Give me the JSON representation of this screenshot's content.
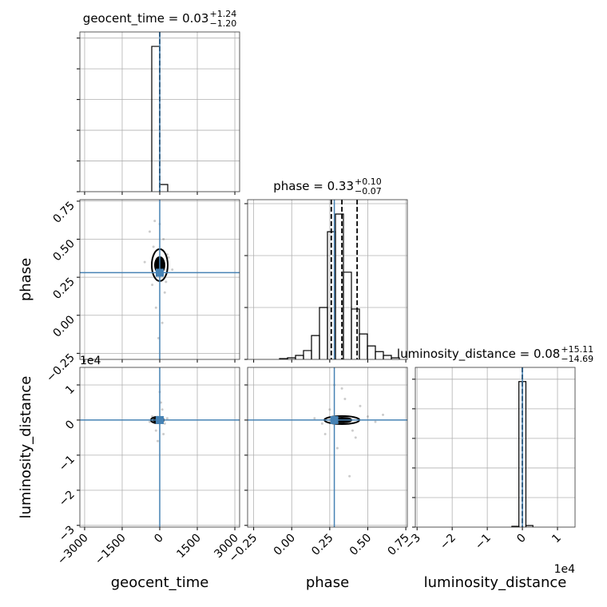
{
  "chart_data": {
    "type": "corner",
    "grid": true,
    "hist_color": "#000000",
    "truth_color": "#4682b4",
    "scatter_color": "#808080",
    "parameters": [
      {
        "name": "geocent_time",
        "title": "geocent_time = 0.03",
        "title_sup": "+1.24",
        "title_sub": "−1.20",
        "lim": [
          -3190,
          3190
        ],
        "ticks": [
          {
            "value": -3000,
            "label": "−3000"
          },
          {
            "value": -1500,
            "label": "−1500"
          },
          0,
          1500,
          3000
        ],
        "truth": 0,
        "quantiles": [
          -1.17,
          0.03,
          1.27
        ],
        "bins": [
          -319,
          0,
          319
        ],
        "counts": [
          4730,
          234
        ],
        "hist_ylim": [
          0,
          5200
        ],
        "hist_yticks": [
          0,
          1000,
          2000,
          3000,
          4000,
          5000
        ]
      },
      {
        "name": "phase",
        "title": "phase = 0.33",
        "title_sup": "+0.10",
        "title_sub": "−0.07",
        "lim": [
          -0.29,
          0.76
        ],
        "ticks": [
          {
            "value": -0.25,
            "label": "−0.25"
          },
          {
            "value": 0,
            "label": "0.00"
          },
          0.25,
          {
            "value": 0.5,
            "label": "0.50"
          },
          0.75
        ],
        "truth": 0.28,
        "quantiles": [
          0.26,
          0.33,
          0.43
        ],
        "bins": [
          -0.08,
          -0.0275,
          0.025,
          0.0775,
          0.13,
          0.1825,
          0.235,
          0.2875,
          0.34,
          0.3925,
          0.445,
          0.4975,
          0.55,
          0.6025,
          0.655,
          0.7075
        ],
        "counts": [
          15,
          31,
          77,
          170,
          460,
          1000,
          2460,
          2800,
          1680,
          970,
          490,
          260,
          150,
          77,
          31
        ],
        "hist_ylim": [
          0,
          3077
        ],
        "hist_yticks": [
          0,
          1000,
          2000,
          3000
        ],
        "joint": [
          {
            "points": [
              [
                -400,
                0.55
              ],
              [
                -250,
                0.45
              ],
              [
                150,
                0.5
              ],
              [
                300,
                0.4
              ],
              [
                -300,
                0.2
              ],
              [
                200,
                0.15
              ],
              [
                -150,
                0.05
              ],
              [
                100,
                -0.05
              ],
              [
                -600,
                0.35
              ],
              [
                500,
                0.3
              ],
              [
                0,
                0.6
              ],
              [
                -50,
                -0.15
              ],
              [
                250,
                0.22
              ],
              [
                -200,
                0.62
              ],
              [
                350,
                0.38
              ]
            ],
            "contours": [
              {
                "cx": 0,
                "cy": 0.33,
                "rx": 319,
                "ry": 0.105
              },
              {
                "cx": 0,
                "cy": 0.33,
                "rx": 190,
                "ry": 0.0525
              }
            ]
          }
        ]
      },
      {
        "name": "luminosity_distance",
        "title": "luminosity_distance = 0.08",
        "title_sup": "+15.11",
        "title_sub": "−14.69",
        "offset_label": "1e4",
        "lim": [
          -3.05,
          1.5
        ],
        "ticks": [
          {
            "value": -3,
            "label": "−3"
          },
          {
            "value": -2,
            "label": "−2"
          },
          {
            "value": -1,
            "label": "−1"
          },
          0,
          1
        ],
        "truth": 0,
        "quantiles": [
          -0.00146,
          8e-06,
          0.00152
        ],
        "bins": [
          -0.3,
          -0.1,
          0.1,
          0.3
        ],
        "counts": [
          27,
          4920,
          54
        ],
        "hist_ylim": [
          0,
          5400
        ],
        "hist_yticks": [
          0,
          1000,
          2000,
          3000,
          4000,
          5000
        ],
        "joint": [
          {
            "points": [
              [
                -300,
                0.1
              ],
              [
                200,
                -0.1
              ],
              [
                100,
                0.3
              ],
              [
                -150,
                -0.3
              ],
              [
                50,
                0.5
              ],
              [
                -80,
                -0.6
              ],
              [
                300,
                0.05
              ],
              [
                -400,
                -0.05
              ],
              [
                0,
                0.8
              ],
              [
                150,
                -0.4
              ]
            ],
            "contours": [
              {
                "cx": -96,
                "cy": 0,
                "rx": 255,
                "ry": 0.091
              },
              {
                "cx": -96,
                "cy": 0,
                "rx": 160,
                "ry": 0.045
              }
            ]
          },
          {
            "points": [
              [
                0.25,
                0.3
              ],
              [
                0.4,
                -0.3
              ],
              [
                0.35,
                0.6
              ],
              [
                0.3,
                -0.8
              ],
              [
                0.5,
                0.1
              ],
              [
                0.2,
                -0.1
              ],
              [
                0.45,
                0.4
              ],
              [
                0.55,
                -0.05
              ],
              [
                0.15,
                0.05
              ],
              [
                0.38,
                -1.6
              ],
              [
                0.6,
                0.15
              ],
              [
                0.28,
                1.0
              ],
              [
                0.42,
                -0.5
              ],
              [
                0.33,
                0.9
              ],
              [
                0.22,
                -0.4
              ]
            ],
            "contours": [
              {
                "cx": 0.33,
                "cy": 0,
                "rx": 0.1155,
                "ry": 0.114
              },
              {
                "cx": 0.33,
                "cy": 0,
                "rx": 0.063,
                "ry": 0.068
              }
            ]
          }
        ]
      }
    ]
  }
}
